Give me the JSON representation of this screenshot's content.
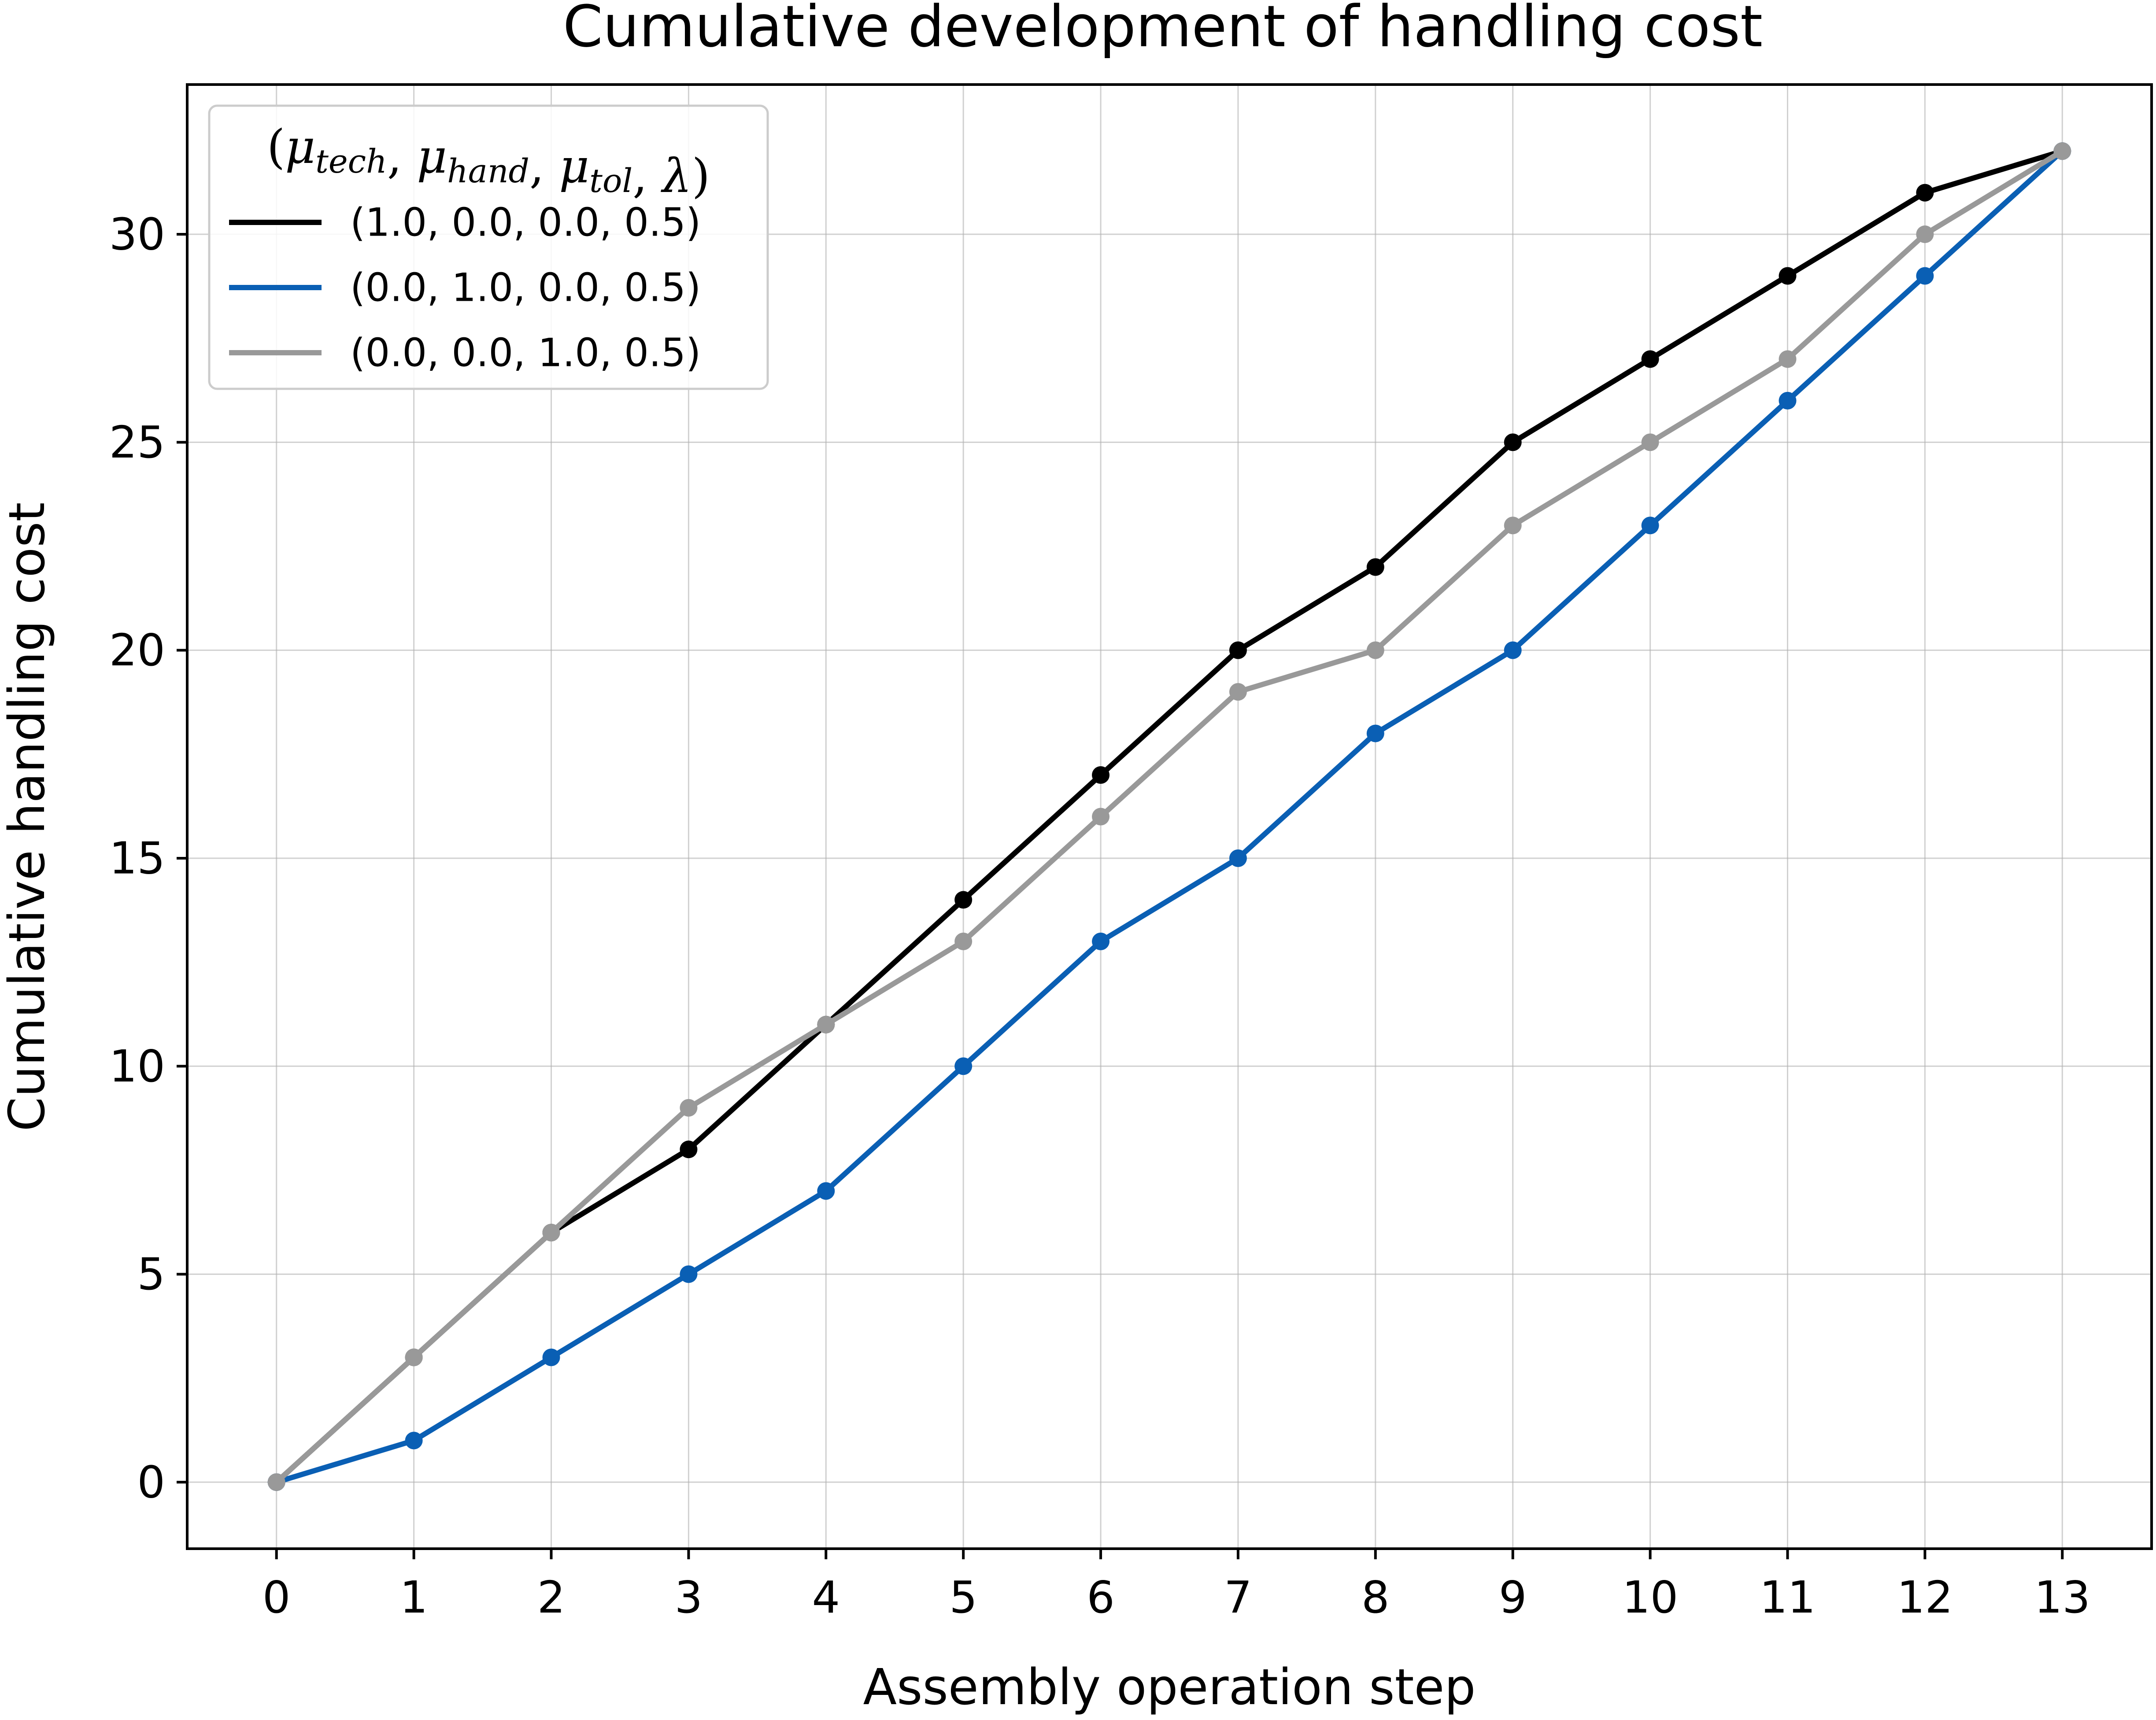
{
  "chart_data": {
    "type": "line",
    "title": "Cumulative development of handling cost",
    "xlabel": "Assembly operation step",
    "ylabel": "Cumulative handling cost",
    "x": [
      0,
      1,
      2,
      3,
      4,
      5,
      6,
      7,
      8,
      9,
      10,
      11,
      12,
      13
    ],
    "xlim": [
      -0.65,
      13.65
    ],
    "ylim": [
      -1.6,
      33.6
    ],
    "xticks": [
      0,
      1,
      2,
      3,
      4,
      5,
      6,
      7,
      8,
      9,
      10,
      11,
      12,
      13
    ],
    "yticks": [
      0,
      5,
      10,
      15,
      20,
      25,
      30
    ],
    "grid": true,
    "legend": {
      "placement": "upper-left",
      "title": "(μtech, μhand, μtol, λ)",
      "title_parts": [
        {
          "text": "(",
          "italic": false,
          "sub": false
        },
        {
          "text": "μ",
          "italic": true,
          "sub": false
        },
        {
          "text": "tech",
          "italic": true,
          "sub": true
        },
        {
          "text": ", ",
          "italic": false,
          "sub": false
        },
        {
          "text": "μ",
          "italic": true,
          "sub": false
        },
        {
          "text": "hand",
          "italic": true,
          "sub": true
        },
        {
          "text": ", ",
          "italic": false,
          "sub": false
        },
        {
          "text": "μ",
          "italic": true,
          "sub": false
        },
        {
          "text": "tol",
          "italic": true,
          "sub": true
        },
        {
          "text": ", ",
          "italic": false,
          "sub": false
        },
        {
          "text": "λ",
          "italic": true,
          "sub": false
        },
        {
          "text": ")",
          "italic": false,
          "sub": false
        }
      ]
    },
    "series": [
      {
        "name": "(1.0, 0.0, 0.0, 0.5)",
        "color": "#000000",
        "values": [
          0,
          3,
          6,
          8,
          11,
          14,
          17,
          20,
          22,
          25,
          27,
          29,
          31,
          32
        ]
      },
      {
        "name": "(0.0, 1.0, 0.0, 0.5)",
        "color": "#0a5fb4",
        "values": [
          0,
          1,
          3,
          5,
          7,
          10,
          13,
          15,
          18,
          20,
          23,
          26,
          29,
          32
        ]
      },
      {
        "name": "(0.0, 0.0, 1.0, 0.5)",
        "color": "#999999",
        "values": [
          0,
          3,
          6,
          9,
          11,
          13,
          16,
          19,
          20,
          23,
          25,
          27,
          30,
          32
        ]
      }
    ]
  }
}
